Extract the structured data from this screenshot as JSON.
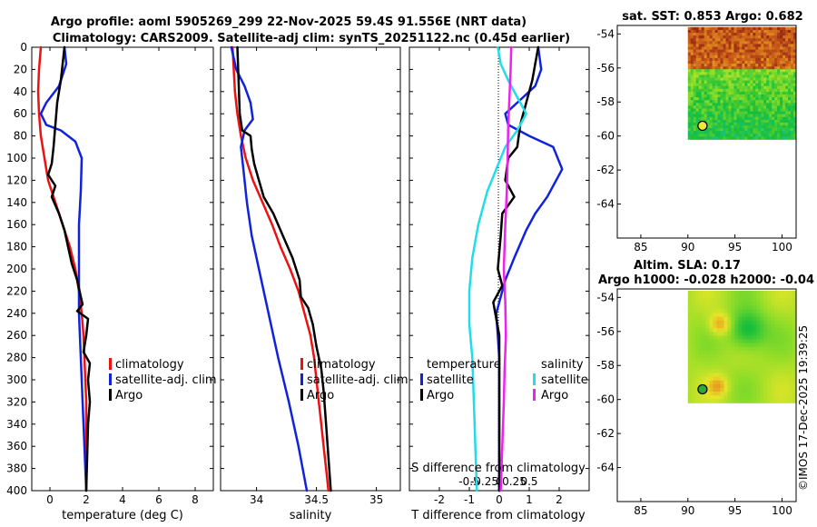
{
  "title": {
    "line1": "Argo profile: aoml 5905269_299 22-Nov-2025 59.4S 91.556E (NRT data)",
    "line2": "Climatology: CARS2009. Satellite-adj clim: synTS_20251122.nc (0.45d earlier)"
  },
  "colors": {
    "climatology": "#ee1111",
    "satellite": "#1122dd",
    "argo": "#000000",
    "sal_satellite": "#22dde8",
    "sal_argo": "#ee22ee"
  },
  "depth_axis": {
    "ylim": [
      0,
      400
    ],
    "ticks": [
      "0",
      "20",
      "40",
      "60",
      "80",
      "100",
      "120",
      "140",
      "160",
      "180",
      "200",
      "220",
      "240",
      "260",
      "280",
      "300",
      "320",
      "340",
      "360",
      "380",
      "400"
    ]
  },
  "chart_data": [
    {
      "type": "line",
      "name": "temperature-profile",
      "xlabel": "temperature (deg C)",
      "xlim": [
        -1,
        9
      ],
      "xticks": [
        {
          "value": 0,
          "label": "0"
        },
        {
          "value": 2,
          "label": "2"
        },
        {
          "value": 4,
          "label": "4"
        },
        {
          "value": 6,
          "label": "6"
        },
        {
          "value": 8,
          "label": "8"
        }
      ],
      "legend": [
        "climatology",
        "satellite-adj. clim",
        "Argo"
      ],
      "series": [
        {
          "key": "climatology",
          "name": "climatology",
          "color": "#ee1111",
          "points": [
            [
              -0.5,
              0
            ],
            [
              -0.6,
              20
            ],
            [
              -0.65,
              40
            ],
            [
              -0.6,
              60
            ],
            [
              -0.5,
              80
            ],
            [
              -0.3,
              100
            ],
            [
              -0.1,
              120
            ],
            [
              0.3,
              140
            ],
            [
              0.7,
              160
            ],
            [
              1.1,
              180
            ],
            [
              1.4,
              200
            ],
            [
              1.6,
              220
            ],
            [
              1.75,
              240
            ],
            [
              1.85,
              260
            ],
            [
              1.9,
              280
            ],
            [
              1.95,
              300
            ],
            [
              2.0,
              320
            ],
            [
              2.0,
              340
            ],
            [
              2.0,
              360
            ],
            [
              2.0,
              380
            ],
            [
              2.0,
              400
            ]
          ]
        },
        {
          "key": "satellite",
          "name": "satellite-adj. clim",
          "color": "#1122dd",
          "points": [
            [
              0.8,
              0
            ],
            [
              0.9,
              15
            ],
            [
              0.5,
              35
            ],
            [
              -0.2,
              50
            ],
            [
              -0.5,
              60
            ],
            [
              -0.2,
              70
            ],
            [
              0.6,
              75
            ],
            [
              1.4,
              85
            ],
            [
              1.75,
              100
            ],
            [
              1.7,
              130
            ],
            [
              1.6,
              160
            ],
            [
              1.6,
              200
            ],
            [
              1.6,
              240
            ],
            [
              1.7,
              280
            ],
            [
              1.8,
              320
            ],
            [
              1.9,
              360
            ],
            [
              2.0,
              400
            ]
          ]
        },
        {
          "key": "argo",
          "name": "Argo",
          "color": "#000000",
          "points": [
            [
              0.8,
              0
            ],
            [
              0.7,
              15
            ],
            [
              0.6,
              30
            ],
            [
              0.4,
              50
            ],
            [
              0.3,
              70
            ],
            [
              0.2,
              90
            ],
            [
              0.1,
              105
            ],
            [
              -0.1,
              115
            ],
            [
              0.3,
              125
            ],
            [
              0.1,
              135
            ],
            [
              0.5,
              150
            ],
            [
              0.8,
              165
            ],
            [
              1.0,
              180
            ],
            [
              1.2,
              195
            ],
            [
              1.5,
              210
            ],
            [
              1.7,
              225
            ],
            [
              1.8,
              232
            ],
            [
              1.5,
              238
            ],
            [
              2.1,
              245
            ],
            [
              2.0,
              260
            ],
            [
              1.85,
              275
            ],
            [
              2.2,
              285
            ],
            [
              2.1,
              300
            ],
            [
              2.2,
              320
            ],
            [
              2.1,
              340
            ],
            [
              2.05,
              370
            ],
            [
              2.0,
              400
            ]
          ]
        }
      ]
    },
    {
      "type": "line",
      "name": "salinity-profile",
      "xlabel": "salinity",
      "xlim": [
        33.7,
        35.2
      ],
      "xticks": [
        {
          "value": 34,
          "label": "34"
        },
        {
          "value": 34.5,
          "label": "34.5"
        },
        {
          "value": 35,
          "label": "35"
        }
      ],
      "legend": [
        "climatology",
        "satellite-adj. clim",
        "Argo"
      ],
      "series": [
        {
          "key": "climatology",
          "name": "climatology",
          "color": "#ee1111",
          "points": [
            [
              33.8,
              0
            ],
            [
              33.81,
              20
            ],
            [
              33.82,
              40
            ],
            [
              33.84,
              60
            ],
            [
              33.87,
              80
            ],
            [
              33.91,
              100
            ],
            [
              33.97,
              120
            ],
            [
              34.05,
              140
            ],
            [
              34.13,
              160
            ],
            [
              34.2,
              180
            ],
            [
              34.28,
              200
            ],
            [
              34.35,
              220
            ],
            [
              34.4,
              240
            ],
            [
              34.45,
              260
            ],
            [
              34.48,
              280
            ],
            [
              34.5,
              300
            ],
            [
              34.52,
              320
            ],
            [
              34.54,
              340
            ],
            [
              34.56,
              360
            ],
            [
              34.58,
              380
            ],
            [
              34.6,
              400
            ]
          ]
        },
        {
          "key": "satellite",
          "name": "satellite-adj. clim",
          "color": "#1122dd",
          "points": [
            [
              33.79,
              0
            ],
            [
              33.83,
              20
            ],
            [
              33.9,
              35
            ],
            [
              33.95,
              50
            ],
            [
              33.97,
              65
            ],
            [
              33.9,
              75
            ],
            [
              33.87,
              90
            ],
            [
              33.89,
              110
            ],
            [
              33.92,
              140
            ],
            [
              33.96,
              170
            ],
            [
              34.02,
              200
            ],
            [
              34.1,
              240
            ],
            [
              34.18,
              280
            ],
            [
              34.27,
              320
            ],
            [
              34.35,
              360
            ],
            [
              34.42,
              400
            ]
          ]
        },
        {
          "key": "argo",
          "name": "Argo",
          "color": "#000000",
          "points": [
            [
              33.84,
              0
            ],
            [
              33.85,
              30
            ],
            [
              33.86,
              60
            ],
            [
              33.88,
              75
            ],
            [
              33.95,
              80
            ],
            [
              33.96,
              92
            ],
            [
              33.98,
              105
            ],
            [
              34.02,
              120
            ],
            [
              34.06,
              135
            ],
            [
              34.14,
              150
            ],
            [
              34.22,
              170
            ],
            [
              34.3,
              190
            ],
            [
              34.36,
              210
            ],
            [
              34.37,
              225
            ],
            [
              34.43,
              235
            ],
            [
              34.47,
              250
            ],
            [
              34.5,
              270
            ],
            [
              34.54,
              290
            ],
            [
              34.56,
              310
            ],
            [
              34.58,
              340
            ],
            [
              34.6,
              370
            ],
            [
              34.62,
              400
            ]
          ]
        }
      ]
    },
    {
      "type": "line",
      "name": "difference-profile",
      "xlabel": "T difference from climatology",
      "xlim": [
        -3,
        3
      ],
      "xticks": [
        {
          "value": -2,
          "label": "-2"
        },
        {
          "value": -1,
          "label": "-1"
        },
        {
          "value": 0,
          "label": "0"
        },
        {
          "value": 1,
          "label": "1"
        },
        {
          "value": 2,
          "label": "2"
        }
      ],
      "xlabel_top": "S difference from climatology",
      "xticks_top": [
        {
          "value": -1,
          "label": "-0.5"
        },
        {
          "value": -0.5,
          "label": "-0.25"
        },
        {
          "value": 0,
          "label": "0"
        },
        {
          "value": 0.5,
          "label": "0.25"
        },
        {
          "value": 1,
          "label": "0.5"
        }
      ],
      "legend_left_title": "temperature",
      "legend_right_title": "salinity",
      "legend_left": [
        "satellite",
        "Argo"
      ],
      "legend_right": [
        "satellite",
        "Argo"
      ],
      "series": [
        {
          "key": "satellite",
          "name": "T satellite",
          "color": "#1122dd",
          "points": [
            [
              1.3,
              0
            ],
            [
              1.4,
              20
            ],
            [
              1.2,
              35
            ],
            [
              0.6,
              50
            ],
            [
              0.2,
              60
            ],
            [
              0.3,
              70
            ],
            [
              1.0,
              80
            ],
            [
              1.8,
              90
            ],
            [
              2.1,
              110
            ],
            [
              1.6,
              135
            ],
            [
              1.2,
              150
            ],
            [
              0.9,
              165
            ],
            [
              0.5,
              190
            ],
            [
              0.2,
              210
            ],
            [
              -0.1,
              240
            ],
            [
              0,
              280
            ],
            [
              0,
              320
            ],
            [
              0,
              360
            ],
            [
              0,
              400
            ]
          ]
        },
        {
          "key": "argo",
          "name": "T Argo",
          "color": "#000000",
          "points": [
            [
              1.3,
              0
            ],
            [
              1.2,
              15
            ],
            [
              1.1,
              30
            ],
            [
              0.9,
              50
            ],
            [
              0.7,
              70
            ],
            [
              0.6,
              90
            ],
            [
              0.3,
              100
            ],
            [
              0.2,
              120
            ],
            [
              0.5,
              135
            ],
            [
              0.1,
              150
            ],
            [
              0.05,
              170
            ],
            [
              -0.05,
              200
            ],
            [
              0.1,
              215
            ],
            [
              -0.2,
              230
            ],
            [
              -0.1,
              245
            ],
            [
              0,
              260
            ],
            [
              0,
              300
            ],
            [
              0,
              340
            ],
            [
              0,
              400
            ]
          ]
        },
        {
          "key": "sal_satellite",
          "name": "S satellite",
          "color": "#22dde8",
          "points": [
            [
              -0.05,
              0
            ],
            [
              0.05,
              15
            ],
            [
              0.3,
              30
            ],
            [
              0.6,
              45
            ],
            [
              0.9,
              60
            ],
            [
              0.6,
              75
            ],
            [
              0.2,
              90
            ],
            [
              -0.1,
              110
            ],
            [
              -0.4,
              130
            ],
            [
              -0.7,
              160
            ],
            [
              -0.9,
              190
            ],
            [
              -1.0,
              220
            ],
            [
              -1.0,
              250
            ],
            [
              -0.9,
              280
            ],
            [
              -0.85,
              320
            ],
            [
              -0.8,
              360
            ],
            [
              -0.75,
              400
            ]
          ]
        },
        {
          "key": "sal_argo",
          "name": "S Argo",
          "color": "#ee22ee",
          "points": [
            [
              0.4,
              0
            ],
            [
              0.38,
              20
            ],
            [
              0.35,
              40
            ],
            [
              0.3,
              70
            ],
            [
              0.28,
              100
            ],
            [
              0.25,
              130
            ],
            [
              0.2,
              160
            ],
            [
              0.15,
              200
            ],
            [
              0.2,
              230
            ],
            [
              0.22,
              260
            ],
            [
              0.18,
              290
            ],
            [
              0.15,
              320
            ],
            [
              0.1,
              360
            ],
            [
              0.05,
              400
            ]
          ]
        }
      ]
    },
    {
      "type": "heatmap",
      "name": "sst-map",
      "title": "sat. SST: 0.853 Argo: 0.682",
      "xlim": [
        82.5,
        101.5
      ],
      "ylim": [
        -66,
        -53.5
      ],
      "xticks": [
        "85",
        "90",
        "95",
        "100"
      ],
      "yticks": [
        "-54",
        "-56",
        "-58",
        "-60",
        "-62",
        "-64"
      ],
      "data_extent": {
        "lon": [
          90,
          101.5
        ],
        "lat": [
          -60.2,
          -53.6
        ]
      },
      "argo_position": {
        "lon": 91.556,
        "lat": -59.4
      }
    },
    {
      "type": "heatmap",
      "name": "sla-map",
      "title": "Altim. SLA: 0.17",
      "subtitle": "Argo h1000: -0.028 h2000: -0.04",
      "xlim": [
        82.5,
        101.5
      ],
      "ylim": [
        -66,
        -53.5
      ],
      "xticks": [
        "85",
        "90",
        "95",
        "100"
      ],
      "yticks": [
        "-54",
        "-56",
        "-58",
        "-60",
        "-62",
        "-64"
      ],
      "data_extent": {
        "lon": [
          90,
          101.5
        ],
        "lat": [
          -60.2,
          -53.6
        ]
      },
      "argo_position": {
        "lon": 91.556,
        "lat": -59.4
      }
    }
  ],
  "watermark": "©IMOS 17-Dec-2025 19:39:25"
}
